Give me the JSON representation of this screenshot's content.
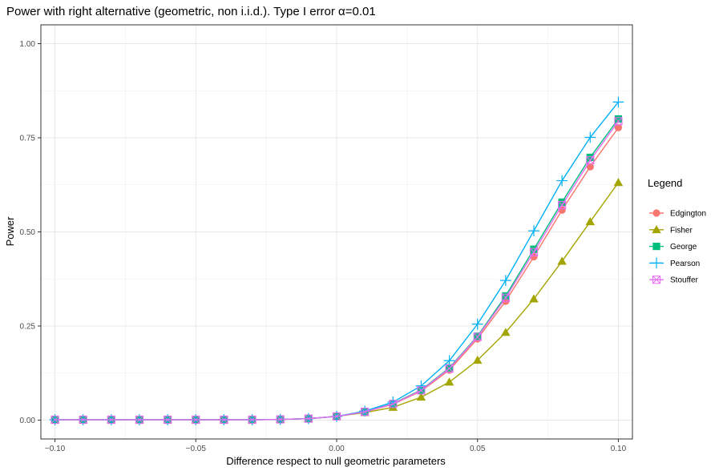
{
  "chart_data": {
    "type": "line",
    "title": "Power with right alternative (geometric, non i.i.d.). Type I error α=0.01",
    "xlabel": "Difference respect to null geometric parameters",
    "ylabel": "Power",
    "xlim": [
      -0.105,
      0.105
    ],
    "ylim": [
      -0.05,
      1.05
    ],
    "xticks": [
      -0.1,
      -0.05,
      0.0,
      0.05,
      0.1
    ],
    "xtick_labels": [
      "−0.10",
      "−0.05",
      "0.00",
      "0.05",
      "0.10"
    ],
    "yticks": [
      0.0,
      0.25,
      0.5,
      0.75,
      1.0
    ],
    "ytick_labels": [
      "0.00",
      "0.25",
      "0.50",
      "0.75",
      "1.00"
    ],
    "grid": true,
    "legend": {
      "title": "Legend",
      "position": "right"
    },
    "x": [
      -0.1,
      -0.09,
      -0.08,
      -0.07,
      -0.06,
      -0.05,
      -0.04,
      -0.03,
      -0.02,
      -0.01,
      0.0,
      0.01,
      0.02,
      0.03,
      0.04,
      0.05,
      0.06,
      0.07,
      0.08,
      0.09,
      0.1
    ],
    "series": [
      {
        "name": "Edgington",
        "color": "#F8766D",
        "marker": "circle",
        "values": [
          0.001,
          0.001,
          0.001,
          0.001,
          0.001,
          0.001,
          0.001,
          0.001,
          0.002,
          0.004,
          0.01,
          0.022,
          0.042,
          0.077,
          0.133,
          0.216,
          0.316,
          0.434,
          0.558,
          0.673,
          0.777
        ]
      },
      {
        "name": "Fisher",
        "color": "#A3A500",
        "marker": "triangle",
        "values": [
          0.001,
          0.001,
          0.001,
          0.001,
          0.001,
          0.001,
          0.001,
          0.001,
          0.002,
          0.004,
          0.01,
          0.02,
          0.034,
          0.061,
          0.101,
          0.159,
          0.233,
          0.322,
          0.422,
          0.527,
          0.631
        ]
      },
      {
        "name": "George",
        "color": "#00BF7D",
        "marker": "square",
        "values": [
          0.001,
          0.001,
          0.001,
          0.001,
          0.001,
          0.001,
          0.001,
          0.001,
          0.002,
          0.004,
          0.01,
          0.022,
          0.044,
          0.08,
          0.139,
          0.223,
          0.33,
          0.454,
          0.579,
          0.698,
          0.8
        ]
      },
      {
        "name": "Pearson",
        "color": "#00B0F6",
        "marker": "plus",
        "values": [
          0.001,
          0.001,
          0.001,
          0.001,
          0.001,
          0.001,
          0.001,
          0.001,
          0.002,
          0.004,
          0.01,
          0.024,
          0.048,
          0.091,
          0.158,
          0.255,
          0.371,
          0.503,
          0.636,
          0.751,
          0.845
        ]
      },
      {
        "name": "Stouffer",
        "color": "#E76BF3",
        "marker": "squarecross",
        "values": [
          0.001,
          0.001,
          0.001,
          0.001,
          0.001,
          0.001,
          0.001,
          0.001,
          0.002,
          0.004,
          0.01,
          0.022,
          0.043,
          0.079,
          0.137,
          0.221,
          0.325,
          0.446,
          0.571,
          0.69,
          0.794
        ]
      }
    ]
  }
}
